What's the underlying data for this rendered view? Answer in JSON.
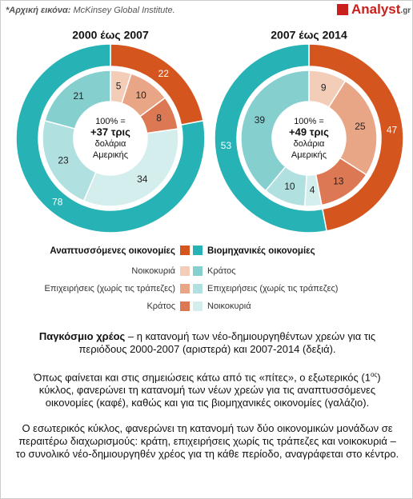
{
  "header": {
    "source_label": "*Αρχική εικόνα:",
    "source": " McKinsey Global Institute.",
    "logo": "Analyst",
    "logo_suffix": ".gr"
  },
  "chart_data": [
    {
      "type": "donut",
      "title": "2000 έως 2007",
      "center": [
        "100% =",
        "+37 τρις",
        "δολάρια",
        "Αμερικής"
      ],
      "outer_values": [
        22,
        78
      ],
      "outer_colors": [
        "#d4561e",
        "#27b3b5"
      ],
      "inner_values": [
        5,
        10,
        8,
        34,
        23,
        21
      ],
      "inner_colors": [
        "#f4cdb9",
        "#e8a687",
        "#dc7853",
        "#d4eeee",
        "#b0e0e0",
        "#86cfcf"
      ]
    },
    {
      "type": "donut",
      "title": "2007 έως 2014",
      "center": [
        "100% =",
        "+49 τρις",
        "δολάρια",
        "Αμερικής"
      ],
      "outer_values": [
        47,
        53
      ],
      "outer_colors": [
        "#d4561e",
        "#27b3b5"
      ],
      "inner_values": [
        9,
        25,
        13,
        4,
        10,
        39
      ],
      "inner_colors": [
        "#f4cdb9",
        "#e8a687",
        "#dc7853",
        "#d4eeee",
        "#b0e0e0",
        "#86cfcf"
      ]
    }
  ],
  "legend": {
    "groups": [
      {
        "name": "Αναπτυσσόμενες οικονομίες",
        "color": "#d4561e",
        "items": [
          {
            "name": "Νοικοκυριά",
            "color": "#f4cdb9"
          },
          {
            "name": "Επιχειρήσεις (χωρίς τις τράπεζες)",
            "color": "#e8a687"
          },
          {
            "name": "Κράτος",
            "color": "#dc7853"
          }
        ]
      },
      {
        "name": "Βιομηχανικές οικονομίες",
        "color": "#27b3b5",
        "items": [
          {
            "name": "Κράτος",
            "color": "#86cfcf"
          },
          {
            "name": "Επιχειρήσεις (χωρίς τις τράπεζες)",
            "color": "#b0e0e0"
          },
          {
            "name": "Νοικοκυριά",
            "color": "#d4eeee"
          }
        ]
      }
    ]
  },
  "text": {
    "paragraphs": [
      [
        {
          "bold": "Παγκόσμιο χρέος"
        },
        {
          "text": " – η κατανομή των νέο-δημιουργηθέντων χρεών για τις περιόδους 2000-2007 (αριστερά) και 2007-2014 (δεξιά)."
        }
      ],
      [
        {
          "text": "Όπως φαίνεται και στις σημειώσεις κάτω από τις «πίτες», ο εξωτερικός (1"
        },
        {
          "sup": "ος"
        },
        {
          "text": ") κύκλος, φανερώνει τη κατανομή των νέων χρεών για τις αναπτυσσόμενες οικονομίες (καφέ), καθώς και για τις βιομηχανικές οικονομίες (γαλάζιο)."
        }
      ],
      [
        {
          "text": "Ο εσωτερικός κύκλος, φανερώνει τη κατανομή των δύο οικονομικών μονάδων σε περαιτέρω διαχωρισμούς: κράτη, επιχειρήσεις χωρίς τις τράπεζες και νοικοκυριά – το συνολικό νέο-δημιουργηθέν χρέος για τη κάθε περίοδο, αναγράφεται στο κέντρο."
        }
      ]
    ]
  }
}
